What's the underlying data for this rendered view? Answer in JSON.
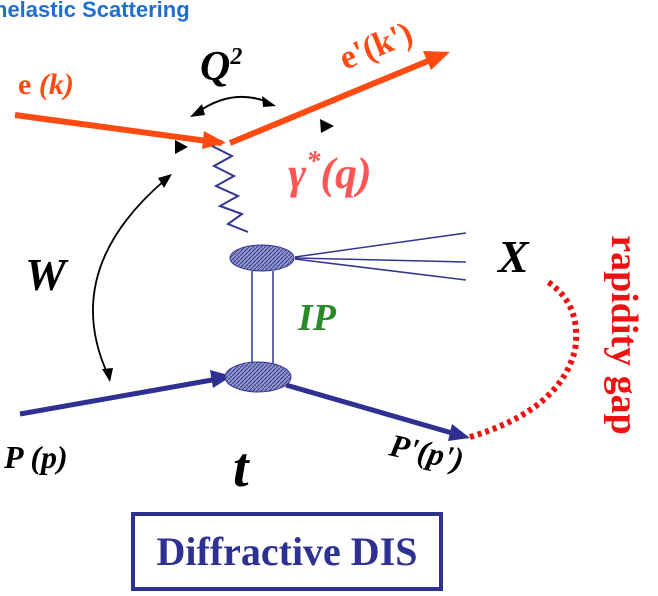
{
  "header": {
    "title": "nelastic Scattering"
  },
  "labels": {
    "electron_in": {
      "particle": "e",
      "momentum": "(k)"
    },
    "q2": {
      "symbol": "Q",
      "sup": "2"
    },
    "electron_out": "e'(k')",
    "photon": {
      "symbol": "γ",
      "sup": "*",
      "momentum": "(q)"
    },
    "w": "W",
    "x": "X",
    "pomeron": "IP",
    "rapidity_gap": "rapidity gap",
    "proton_in": {
      "particle": "P",
      "momentum": "(p)"
    },
    "t": "t",
    "proton_out": "P'(p')"
  },
  "box": {
    "title": "Diffractive DIS"
  }
}
